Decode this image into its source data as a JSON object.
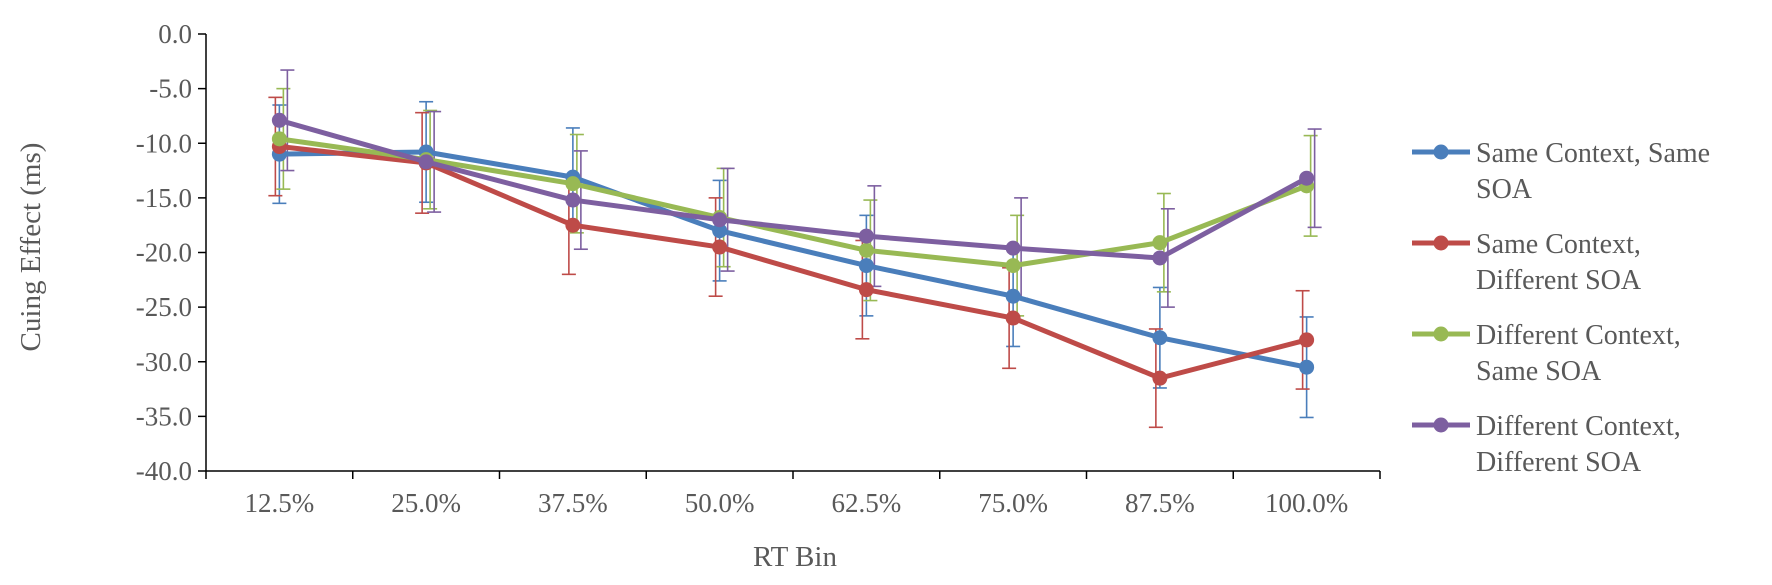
{
  "chart_data": {
    "type": "line",
    "title": "",
    "xlabel": "RT Bin",
    "ylabel": "Cuing Effect (ms)",
    "ylim": [
      -40,
      0
    ],
    "yticks": [
      0,
      -5,
      -10,
      -15,
      -20,
      -25,
      -30,
      -35,
      -40
    ],
    "ytick_labels": [
      "0.0",
      "-5.0",
      "-10.0",
      "-15.0",
      "-20.0",
      "-25.0",
      "-30.0",
      "-35.0",
      "-40.0"
    ],
    "categories": [
      "12.5%",
      "25.0%",
      "37.5%",
      "50.0%",
      "62.5%",
      "75.0%",
      "87.5%",
      "100.0%"
    ],
    "grid": false,
    "legend_position": "right",
    "error_bars": true,
    "series": [
      {
        "name": "Same Context, Same SOA",
        "legend_lines": [
          "Same Context, Same",
          "SOA"
        ],
        "color": "#4a7ebb",
        "values": [
          -11.0,
          -10.8,
          -13.1,
          -18.0,
          -21.2,
          -24.0,
          -27.8,
          -30.5
        ],
        "errors": [
          4.5,
          4.6,
          4.5,
          4.6,
          4.6,
          4.6,
          4.6,
          4.6
        ]
      },
      {
        "name": "Same Context, Different SOA",
        "legend_lines": [
          "Same Context,",
          "Different SOA"
        ],
        "color": "#be4b48",
        "values": [
          -10.3,
          -11.8,
          -17.5,
          -19.5,
          -23.4,
          -26.0,
          -31.5,
          -28.0
        ],
        "errors": [
          4.5,
          4.6,
          4.5,
          4.5,
          4.5,
          4.6,
          4.5,
          4.5
        ]
      },
      {
        "name": "Different Context, Same SOA",
        "legend_lines": [
          "Different Context,",
          "Same SOA"
        ],
        "color": "#98b954",
        "values": [
          -9.6,
          -11.5,
          -13.7,
          -16.8,
          -19.8,
          -21.2,
          -19.1,
          -13.9
        ],
        "errors": [
          4.6,
          4.5,
          4.5,
          4.5,
          4.6,
          4.6,
          4.5,
          4.6
        ]
      },
      {
        "name": "Different Context, Different SOA",
        "legend_lines": [
          "Different Context,",
          "Different SOA"
        ],
        "color": "#7d5fa0",
        "values": [
          -7.9,
          -11.7,
          -15.2,
          -17.0,
          -18.5,
          -19.6,
          -20.5,
          -13.2
        ],
        "errors": [
          4.6,
          4.6,
          4.5,
          4.7,
          4.6,
          4.6,
          4.5,
          4.5
        ]
      }
    ]
  }
}
